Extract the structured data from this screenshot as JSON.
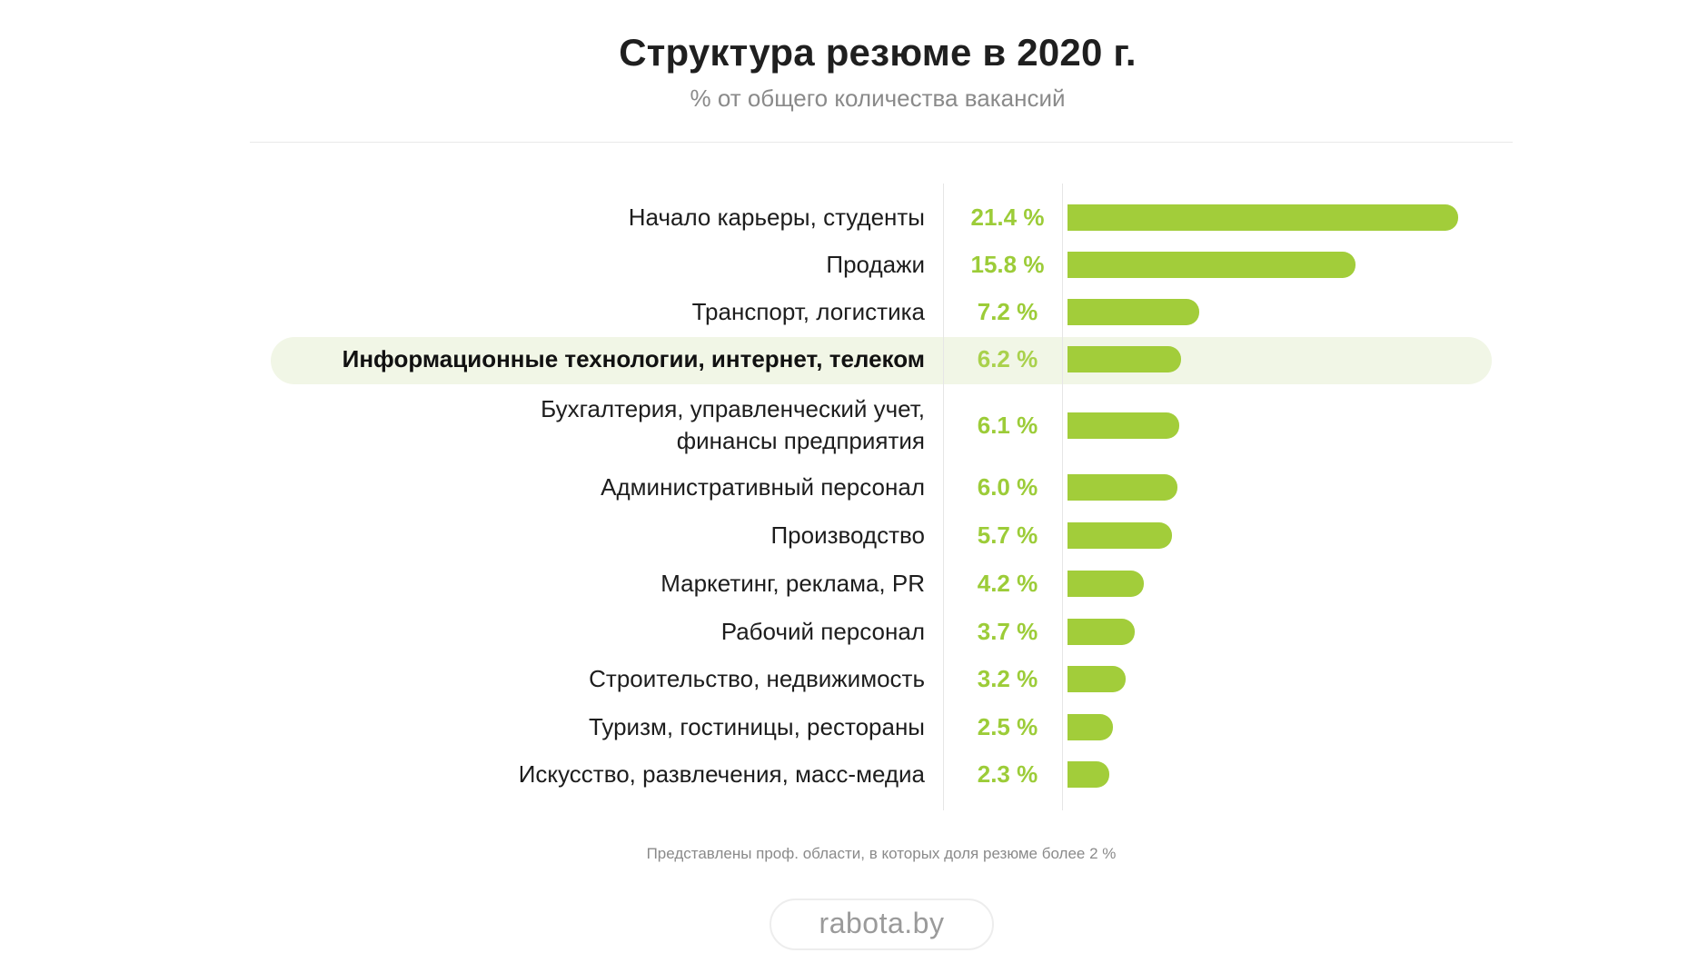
{
  "header": {
    "title": "Структура резюме в 2020 г.",
    "subtitle": "% от общего количества вакансий"
  },
  "chart_data": {
    "type": "bar",
    "orientation": "horizontal",
    "title": "Структура резюме в 2020 г.",
    "subtitle": "% от общего количества вакансий",
    "unit": "%",
    "bar_color": "#a2cd3a",
    "highlight_color": "#f1f6e6",
    "highlighted_category": "Информационные технологии, интернет, телеком",
    "categories": [
      "Начало карьеры, студенты",
      "Продажи",
      "Транспорт, логистика",
      "Информационные технологии, интернет, телеком",
      "Бухгалтерия, управленческий учет, финансы предприятия",
      "Административный персонал",
      "Производство",
      "Маркетинг, реклама, PR",
      "Рабочий персонал",
      "Строительство, недвижимость",
      "Туризм, гостиницы, рестораны",
      "Искусство, развлечения, масс-медиа"
    ],
    "category_lines": [
      [
        "Начало карьеры, студенты"
      ],
      [
        "Продажи"
      ],
      [
        "Транспорт, логистика"
      ],
      [
        "Информационные технологии, интернет, телеком"
      ],
      [
        "Бухгалтерия, управленческий учет,",
        "финансы предприятия"
      ],
      [
        "Административный персонал"
      ],
      [
        "Производство"
      ],
      [
        "Маркетинг, реклама, PR"
      ],
      [
        "Рабочий персонал"
      ],
      [
        "Строительство, недвижимость"
      ],
      [
        "Туризм, гостиницы, рестораны"
      ],
      [
        "Искусство, развлечения, масс-медиа"
      ]
    ],
    "values": [
      21.4,
      15.8,
      7.2,
      6.2,
      6.1,
      6.0,
      5.7,
      4.2,
      3.7,
      3.2,
      2.5,
      2.3
    ],
    "value_labels": [
      "21.4 %",
      "15.8 %",
      "7.2 %",
      "6.2 %",
      "6.1 %",
      "6.0 %",
      "5.7 %",
      "4.2 %",
      "3.7 %",
      "3.2 %",
      "2.5 %",
      "2.3 %"
    ],
    "xlim": [
      0,
      21.4
    ]
  },
  "footer": {
    "note": "Представлены проф. области, в которых доля резюме более 2 %",
    "brand": "rabota.by"
  }
}
